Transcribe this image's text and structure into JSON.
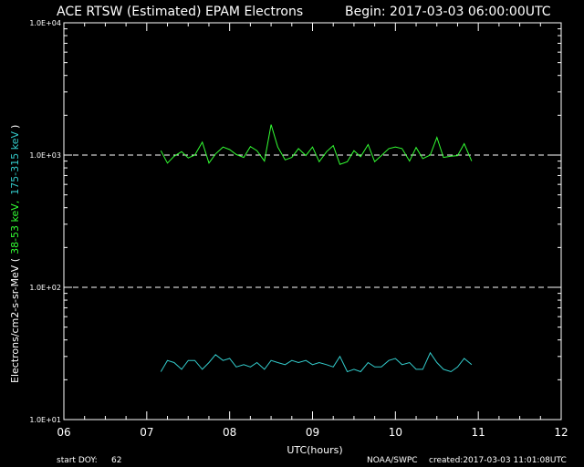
{
  "chart_data": {
    "type": "line",
    "title": "ACE RTSW (Estimated) EPAM Electrons",
    "begin_label": "Begin: 2017-03-03 06:00:00UTC",
    "xlabel": "UTC(hours)",
    "ylabel_prefix": "Electrons/cm2-s-sr-MeV  (",
    "ylabel_series1": "38-53 keV,",
    "ylabel_series2": "175-315 keV",
    "ylabel_suffix": ")",
    "xlim": [
      6,
      12
    ],
    "ylim": [
      10,
      10000
    ],
    "log_y": true,
    "x_ticks": [
      "06",
      "07",
      "08",
      "09",
      "10",
      "11",
      "12"
    ],
    "y_ticks": [
      "1.0E+01",
      "1.0E+02",
      "1.0E+03",
      "1.0E+04"
    ],
    "reference_lines": [
      1000,
      100
    ],
    "footer": {
      "start_doy_label": "start DOY:",
      "start_doy_value": "62",
      "agency": "NOAA/SWPC",
      "created": "created:2017-03-03 11:01:08UTC"
    },
    "colors": {
      "background": "#000000",
      "axes": "#ffffff",
      "series1": "#33ff33",
      "series2": "#33cccc"
    },
    "series": [
      {
        "x": [
          7.17,
          7.25,
          7.33,
          7.42,
          7.5,
          7.58,
          7.67,
          7.75,
          7.83,
          7.92,
          8.0,
          8.08,
          8.17,
          8.25,
          8.33,
          8.42,
          8.5,
          8.58,
          8.67,
          8.75,
          8.83,
          8.92,
          9.0,
          9.08,
          9.17,
          9.25,
          9.33,
          9.42,
          9.5,
          9.58,
          9.67,
          9.75,
          9.83,
          9.92,
          10.0,
          10.08,
          10.17,
          10.25,
          10.33,
          10.42,
          10.5,
          10.58,
          10.67,
          10.75,
          10.83,
          10.92
        ],
        "values": [
          1080,
          870,
          980,
          1060,
          950,
          1000,
          1250,
          870,
          1020,
          1150,
          1100,
          1010,
          960,
          1160,
          1080,
          900,
          1700,
          1150,
          920,
          960,
          1120,
          990,
          1150,
          890,
          1060,
          1180,
          850,
          890,
          1080,
          970,
          1200,
          890,
          990,
          1120,
          1150,
          1120,
          900,
          1140,
          940,
          1000,
          1360,
          960,
          980,
          990,
          1220,
          900
        ]
      },
      {
        "x": [
          7.17,
          7.25,
          7.33,
          7.42,
          7.5,
          7.58,
          7.67,
          7.75,
          7.83,
          7.92,
          8.0,
          8.08,
          8.17,
          8.25,
          8.33,
          8.42,
          8.5,
          8.58,
          8.67,
          8.75,
          8.83,
          8.92,
          9.0,
          9.08,
          9.17,
          9.25,
          9.33,
          9.42,
          9.5,
          9.58,
          9.67,
          9.75,
          9.83,
          9.92,
          10.0,
          10.08,
          10.17,
          10.25,
          10.33,
          10.42,
          10.5,
          10.58,
          10.67,
          10.75,
          10.83,
          10.92
        ],
        "values": [
          23,
          28,
          27,
          24,
          28,
          28,
          24,
          27,
          31,
          28,
          29,
          25,
          26,
          25,
          27,
          24,
          28,
          27,
          26,
          28,
          27,
          28,
          26,
          27,
          26,
          25,
          30,
          23,
          24,
          23,
          27,
          25,
          25,
          28,
          29,
          26,
          27,
          24,
          24,
          32,
          27,
          24,
          23,
          25,
          29,
          26
        ]
      }
    ]
  }
}
